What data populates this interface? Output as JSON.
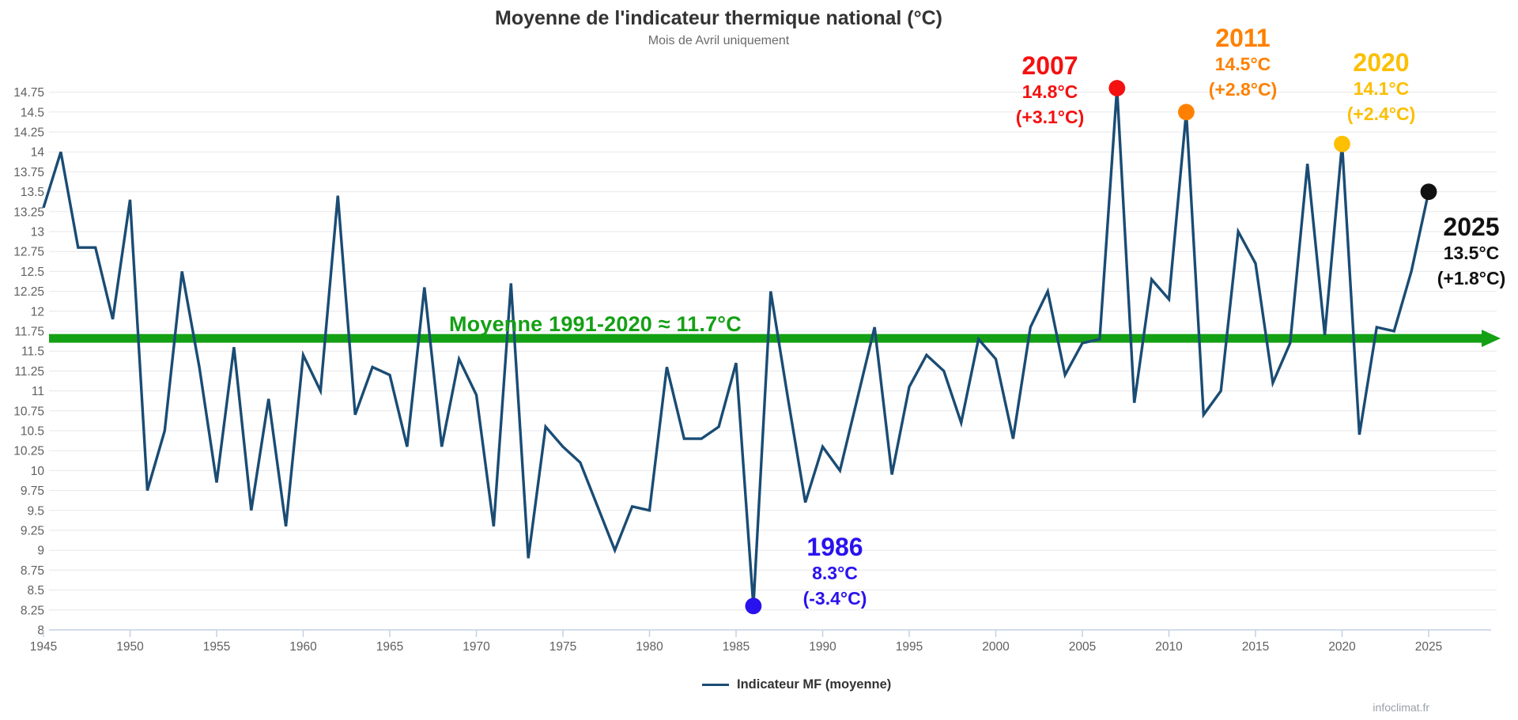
{
  "header": {
    "title": "Moyenne de l'indicateur thermique national (°C)",
    "subtitle": "Mois de Avril uniquement"
  },
  "legend": {
    "label": "Indicateur MF (moyenne)"
  },
  "footer": {
    "credit": "infoclimat.fr"
  },
  "colors": {
    "series_line": "#1a4c74",
    "reference_green": "#14a014",
    "grid": "#e7e7ec",
    "axis": "#c3d0e6",
    "tick_text": "#606060",
    "title_text": "#333333"
  },
  "chart_data": {
    "type": "line",
    "title": "Moyenne de l'indicateur thermique national (°C)",
    "subtitle": "Mois de Avril uniquement",
    "xlabel": "",
    "ylabel": "",
    "ylim": [
      8,
      14.75
    ],
    "ytick_step": 0.25,
    "xlim": [
      1945,
      2025
    ],
    "xtick_step": 5,
    "grid": true,
    "legend_position": "bottom",
    "x_start": 1945,
    "x_step": 1,
    "series": [
      {
        "name": "Indicateur MF (moyenne)",
        "color": "#1a4c74",
        "values": [
          13.3,
          14.0,
          12.8,
          12.8,
          11.9,
          13.4,
          9.75,
          10.5,
          12.5,
          11.3,
          9.85,
          11.55,
          9.5,
          10.9,
          9.3,
          11.45,
          11.0,
          13.45,
          10.7,
          11.3,
          11.2,
          10.3,
          12.3,
          10.3,
          11.4,
          10.95,
          9.3,
          12.35,
          8.9,
          10.55,
          10.3,
          10.1,
          9.55,
          9.0,
          9.55,
          9.5,
          11.3,
          10.4,
          10.4,
          10.55,
          11.35,
          8.3,
          12.25,
          10.9,
          9.6,
          10.3,
          10.0,
          10.9,
          11.8,
          9.95,
          11.05,
          11.45,
          11.25,
          10.6,
          11.65,
          11.4,
          10.4,
          11.8,
          12.25,
          11.2,
          11.6,
          11.65,
          14.8,
          10.85,
          12.4,
          12.15,
          14.5,
          10.7,
          11.0,
          13.0,
          12.6,
          11.1,
          11.6,
          13.85,
          11.7,
          14.1,
          10.45,
          11.8,
          11.75,
          12.5,
          13.5
        ]
      }
    ],
    "reference_line": {
      "value": 11.66,
      "label": "Moyenne 1991-2020  ≈ 11.7°C",
      "color": "#14a014",
      "arrow_end": true
    }
  },
  "annotations": [
    {
      "year": 2007,
      "value": 14.8,
      "year_label": "2007",
      "temp_label": "14.8°C",
      "anomaly_label": "(+3.1°C)",
      "color": "#f31111"
    },
    {
      "year": 2011,
      "value": 14.5,
      "year_label": "2011",
      "temp_label": "14.5°C",
      "anomaly_label": "(+2.8°C)",
      "color": "#ff8000"
    },
    {
      "year": 2020,
      "value": 14.1,
      "year_label": "2020",
      "temp_label": "14.1°C",
      "anomaly_label": "(+2.4°C)",
      "color": "#fcbf02"
    },
    {
      "year": 2025,
      "value": 13.5,
      "year_label": "2025",
      "temp_label": "13.5°C",
      "anomaly_label": "(+1.8°C)",
      "color": "#111111"
    },
    {
      "year": 1986,
      "value": 8.3,
      "year_label": "1986",
      "temp_label": "8.3°C",
      "anomaly_label": "(-3.4°C)",
      "color": "#2a12ee"
    }
  ]
}
